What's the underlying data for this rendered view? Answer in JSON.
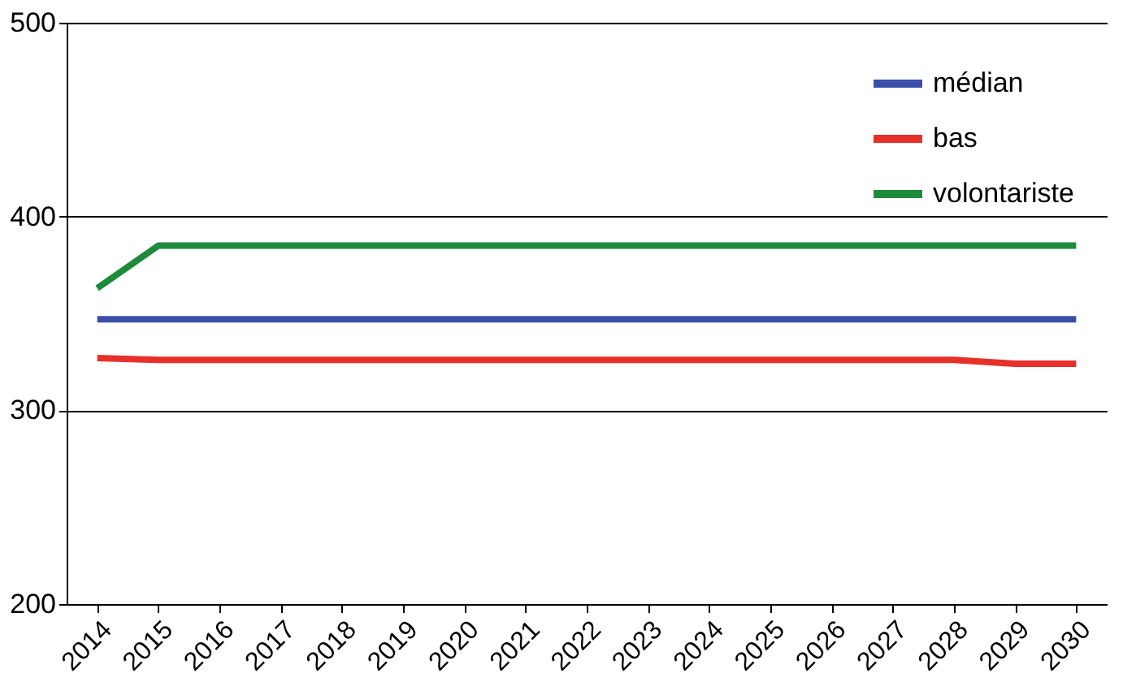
{
  "chart_data": {
    "type": "line",
    "categories": [
      "2014",
      "2015",
      "2016",
      "2017",
      "2018",
      "2019",
      "2020",
      "2021",
      "2022",
      "2023",
      "2024",
      "2025",
      "2026",
      "2027",
      "2028",
      "2029",
      "2030"
    ],
    "series": [
      {
        "name": "médian",
        "color": "#3a4fa8",
        "values": [
          347,
          347,
          347,
          347,
          347,
          347,
          347,
          347,
          347,
          347,
          347,
          347,
          347,
          347,
          347,
          347,
          347
        ]
      },
      {
        "name": "bas",
        "color": "#e8302a",
        "values": [
          327,
          326,
          326,
          326,
          326,
          326,
          326,
          326,
          326,
          326,
          326,
          326,
          326,
          326,
          326,
          324,
          324
        ]
      },
      {
        "name": "volontariste",
        "color": "#1e8a3c",
        "values": [
          363,
          385,
          385,
          385,
          385,
          385,
          385,
          385,
          385,
          385,
          385,
          385,
          385,
          385,
          385,
          385,
          385
        ]
      }
    ],
    "ylim": [
      200,
      500
    ],
    "yticks": [
      200,
      300,
      400,
      500
    ],
    "grid": "y",
    "legend": "top right",
    "marker": "none",
    "line_style": "solid"
  }
}
